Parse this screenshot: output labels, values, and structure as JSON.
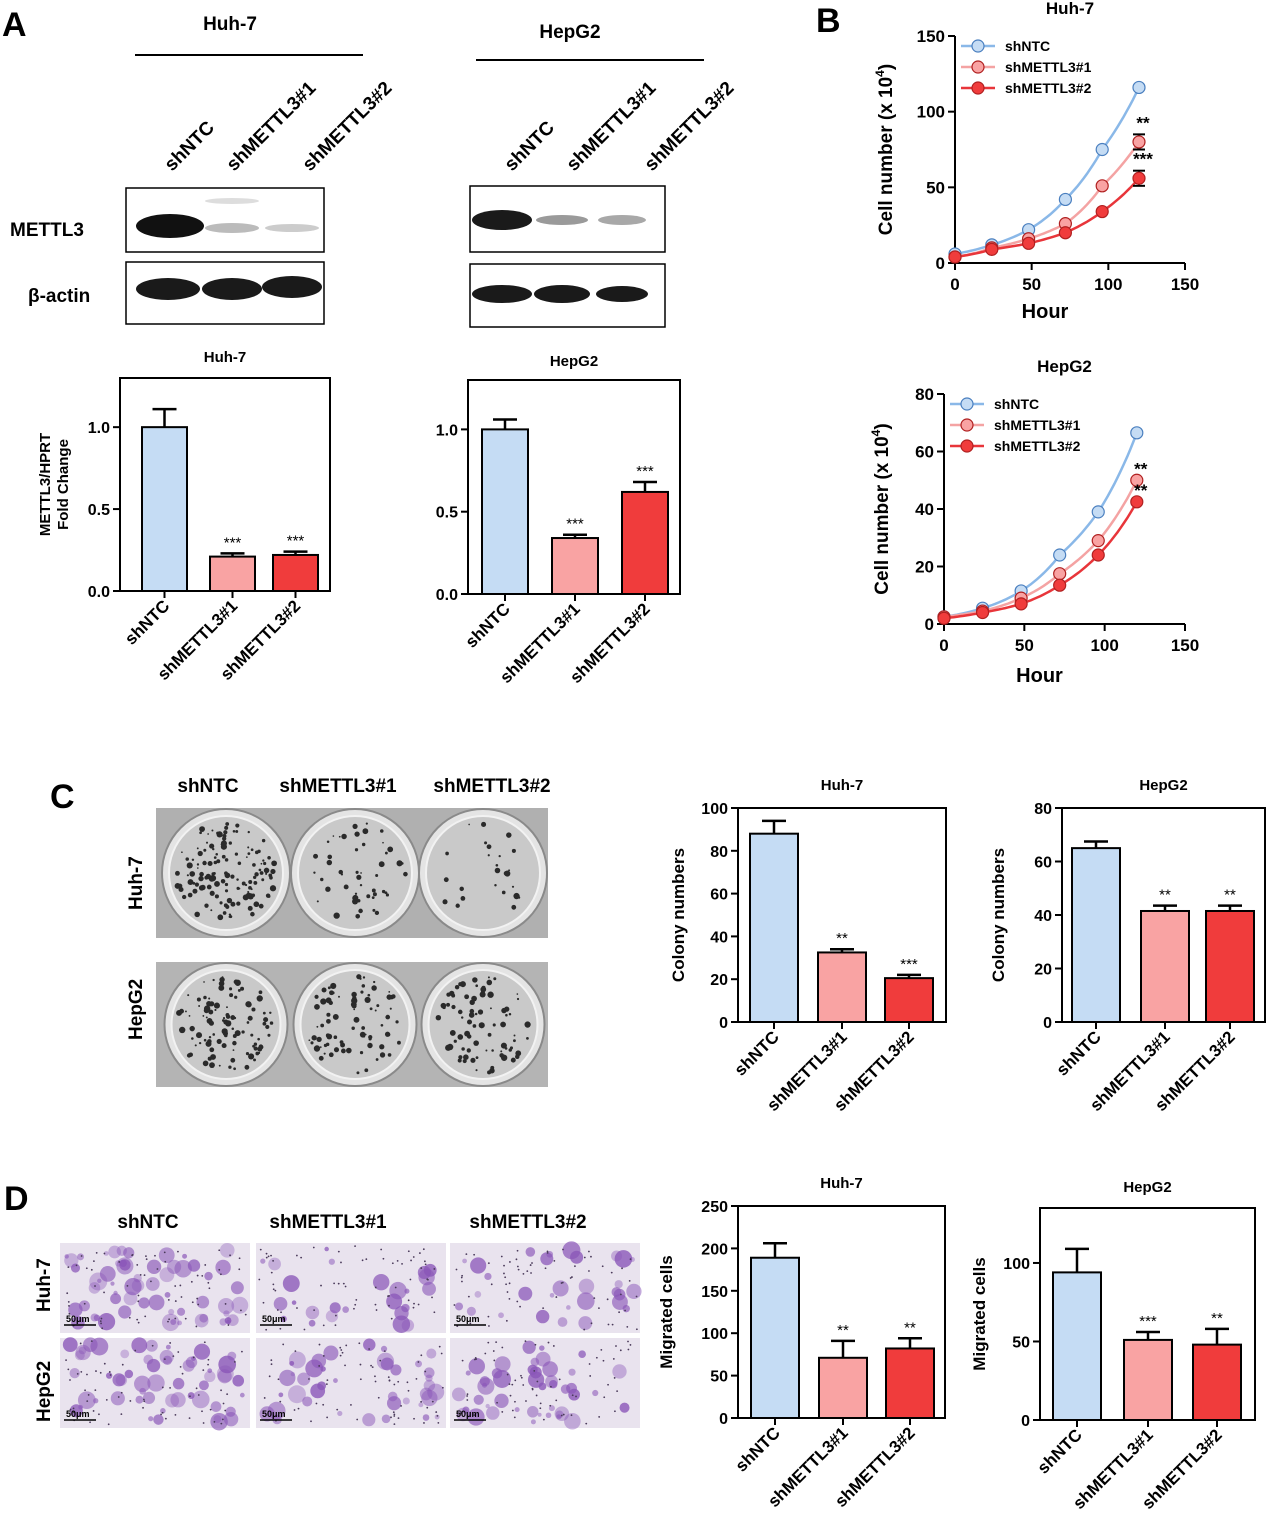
{
  "colors": {
    "shNTC": "#c5dcf4",
    "shMETTL3#1": "#f9a3a3",
    "shMETTL3#2": "#f03c3c",
    "line_shNTC": "#8ab8e8",
    "line_shMETTL3#1": "#f4a3a3",
    "line_shMETTL3#2": "#e8353a"
  },
  "panel_letters": {
    "a": "A",
    "b": "B",
    "c": "C",
    "d": "D"
  },
  "panel_a": {
    "cell_lines": [
      "Huh-7",
      "HepG2"
    ],
    "lanes": [
      "shNTC",
      "shMETTL3#1",
      "shMETTL3#2"
    ],
    "proteins": [
      "METTL3",
      "β-actin"
    ]
  },
  "panel_c": {
    "conditions": [
      "shNTC",
      "shMETTL3#1",
      "shMETTL3#2"
    ],
    "rows": [
      "Huh-7",
      "HepG2"
    ]
  },
  "panel_d": {
    "conditions": [
      "shNTC",
      "shMETTL3#1",
      "shMETTL3#2"
    ],
    "rows": [
      "Huh-7",
      "HepG2"
    ],
    "scale_bar": "50μm"
  },
  "chart_data": [
    {
      "id": "a1",
      "type": "bar",
      "title": "Huh-7",
      "ylabel": "METTL3/HPRT Fold Change",
      "categories": [
        "shNTC",
        "shMETTL3#1",
        "shMETTL3#2"
      ],
      "values": [
        1.0,
        0.21,
        0.22
      ],
      "errors": [
        0.11,
        0.02,
        0.02
      ],
      "significance": [
        "",
        "***",
        "***"
      ],
      "ylim": [
        0,
        1.3
      ],
      "yticks": [
        "0.0",
        "0.5",
        "1.0"
      ]
    },
    {
      "id": "a2",
      "type": "bar",
      "title": "HepG2",
      "ylabel": "",
      "categories": [
        "shNTC",
        "shMETTL3#1",
        "shMETTL3#2"
      ],
      "values": [
        1.0,
        0.34,
        0.62
      ],
      "errors": [
        0.06,
        0.02,
        0.06
      ],
      "significance": [
        "",
        "***",
        "***"
      ],
      "ylim": [
        0,
        1.3
      ],
      "yticks": [
        "0.0",
        "0.5",
        "1.0"
      ]
    },
    {
      "id": "b1",
      "type": "line",
      "title": "Huh-7",
      "xlabel": "Hour",
      "ylabel": "Cell number (x 10",
      "ylabel_sup": "4",
      "ylabel_close": ")",
      "xlim": [
        0,
        150
      ],
      "ylim": [
        0,
        150
      ],
      "xticks": [
        "0",
        "50",
        "100",
        "150"
      ],
      "yticks": [
        "0",
        "50",
        "100",
        "150"
      ],
      "x": [
        0,
        24,
        48,
        72,
        96,
        120
      ],
      "series": [
        {
          "name": "shNTC",
          "values": [
            6,
            12,
            22,
            42,
            75,
            116
          ],
          "error": [
            0,
            0,
            0,
            0,
            0,
            0
          ],
          "significance": ""
        },
        {
          "name": "shMETTL3#1",
          "values": [
            4,
            10,
            16,
            26,
            51,
            80
          ],
          "error": [
            0,
            0,
            0,
            0,
            0,
            5
          ],
          "significance": "**"
        },
        {
          "name": "shMETTL3#2",
          "values": [
            4,
            9,
            13,
            20,
            34,
            56
          ],
          "error": [
            0,
            0,
            0,
            0,
            0,
            5
          ],
          "significance": "***"
        }
      ],
      "legend": "top-left"
    },
    {
      "id": "b2",
      "type": "line",
      "title": "HepG2",
      "xlabel": "Hour",
      "ylabel": "Cell number (x 10",
      "ylabel_sup": "4",
      "ylabel_close": ")",
      "xlim": [
        0,
        150
      ],
      "ylim": [
        0,
        80
      ],
      "xticks": [
        "0",
        "50",
        "100",
        "150"
      ],
      "yticks": [
        "0",
        "20",
        "40",
        "60",
        "80"
      ],
      "x": [
        0,
        24,
        48,
        72,
        96,
        120
      ],
      "series": [
        {
          "name": "shNTC",
          "values": [
            2.5,
            5.5,
            11.5,
            24,
            39,
            66.5
          ],
          "error": [
            0,
            0,
            0,
            0,
            0,
            0
          ],
          "significance": ""
        },
        {
          "name": "shMETTL3#1",
          "values": [
            2.5,
            4.5,
            9,
            17.5,
            29,
            50
          ],
          "error": [
            0,
            0,
            0,
            0,
            0,
            0
          ],
          "significance": "**"
        },
        {
          "name": "shMETTL3#2",
          "values": [
            2,
            4,
            7,
            13.5,
            24,
            42.5
          ],
          "error": [
            0,
            0,
            0,
            0,
            0,
            0
          ],
          "significance": "**"
        }
      ],
      "legend": "top-left"
    },
    {
      "id": "c1",
      "type": "bar",
      "title": "Huh-7",
      "ylabel": "Colony numbers",
      "categories": [
        "shNTC",
        "shMETTL3#1",
        "shMETTL3#2"
      ],
      "values": [
        88,
        32.5,
        20.5
      ],
      "errors": [
        6,
        1.5,
        1.5
      ],
      "significance": [
        "",
        "**",
        "***"
      ],
      "ylim": [
        0,
        100
      ],
      "yticks": [
        "0",
        "20",
        "40",
        "60",
        "80",
        "100"
      ]
    },
    {
      "id": "c2",
      "type": "bar",
      "title": "HepG2",
      "ylabel": "Colony numbers",
      "categories": [
        "shNTC",
        "shMETTL3#1",
        "shMETTL3#2"
      ],
      "values": [
        65,
        41.5,
        41.5
      ],
      "errors": [
        2.5,
        2,
        2
      ],
      "significance": [
        "",
        "**",
        "**"
      ],
      "ylim": [
        0,
        80
      ],
      "yticks": [
        "0",
        "20",
        "40",
        "60",
        "80"
      ]
    },
    {
      "id": "d1",
      "type": "bar",
      "title": "Huh-7",
      "ylabel": "Migrated cells",
      "categories": [
        "shNTC",
        "shMETTL3#1",
        "shMETTL3#2"
      ],
      "values": [
        189,
        71,
        82
      ],
      "errors": [
        17,
        20,
        12
      ],
      "significance": [
        "",
        "**",
        "**"
      ],
      "ylim": [
        0,
        250
      ],
      "yticks": [
        "0",
        "50",
        "100",
        "150",
        "200",
        "250"
      ]
    },
    {
      "id": "d2",
      "type": "bar",
      "title": "HepG2",
      "ylabel": "Migrated cells",
      "categories": [
        "shNTC",
        "shMETTL3#1",
        "shMETTL3#2"
      ],
      "values": [
        94,
        51,
        48
      ],
      "errors": [
        15,
        5,
        10
      ],
      "significance": [
        "",
        "***",
        "**"
      ],
      "ylim": [
        0,
        135
      ],
      "yticks": [
        "0",
        "50",
        "100"
      ]
    }
  ]
}
